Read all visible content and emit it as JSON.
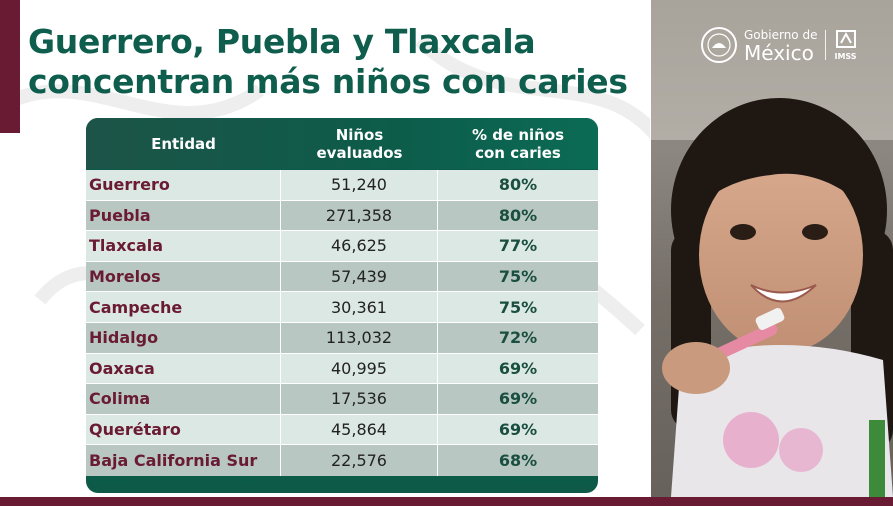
{
  "title": {
    "line1": "Guerrero, Puebla y Tlaxcala",
    "line2": "concentran más niños con caries"
  },
  "table": {
    "headers": {
      "entidad": "Entidad",
      "evaluados_l1": "Niños",
      "evaluados_l2": "evaluados",
      "caries_l1": "% de niños",
      "caries_l2": "con caries"
    },
    "rows": [
      {
        "entidad": "Guerrero",
        "evaluados": "51,240",
        "caries": "80%"
      },
      {
        "entidad": "Puebla",
        "evaluados": "271,358",
        "caries": "80%"
      },
      {
        "entidad": "Tlaxcala",
        "evaluados": "46,625",
        "caries": "77%"
      },
      {
        "entidad": "Morelos",
        "evaluados": "57,439",
        "caries": "75%"
      },
      {
        "entidad": "Campeche",
        "evaluados": "30,361",
        "caries": "75%"
      },
      {
        "entidad": "Hidalgo",
        "evaluados": "113,032",
        "caries": "72%"
      },
      {
        "entidad": "Oaxaca",
        "evaluados": "40,995",
        "caries": "69%"
      },
      {
        "entidad": "Colima",
        "evaluados": "17,536",
        "caries": "69%"
      },
      {
        "entidad": "Querétaro",
        "evaluados": "45,864",
        "caries": "69%"
      },
      {
        "entidad": "Baja California Sur",
        "evaluados": "22,576",
        "caries": "68%"
      }
    ]
  },
  "logo": {
    "line1": "Gobierno de",
    "line2": "México",
    "imss": "IMSS"
  },
  "colors": {
    "title": "#0f5e4d",
    "brand_maroon": "#6a1b34",
    "header_green": "#0d5c4a"
  }
}
